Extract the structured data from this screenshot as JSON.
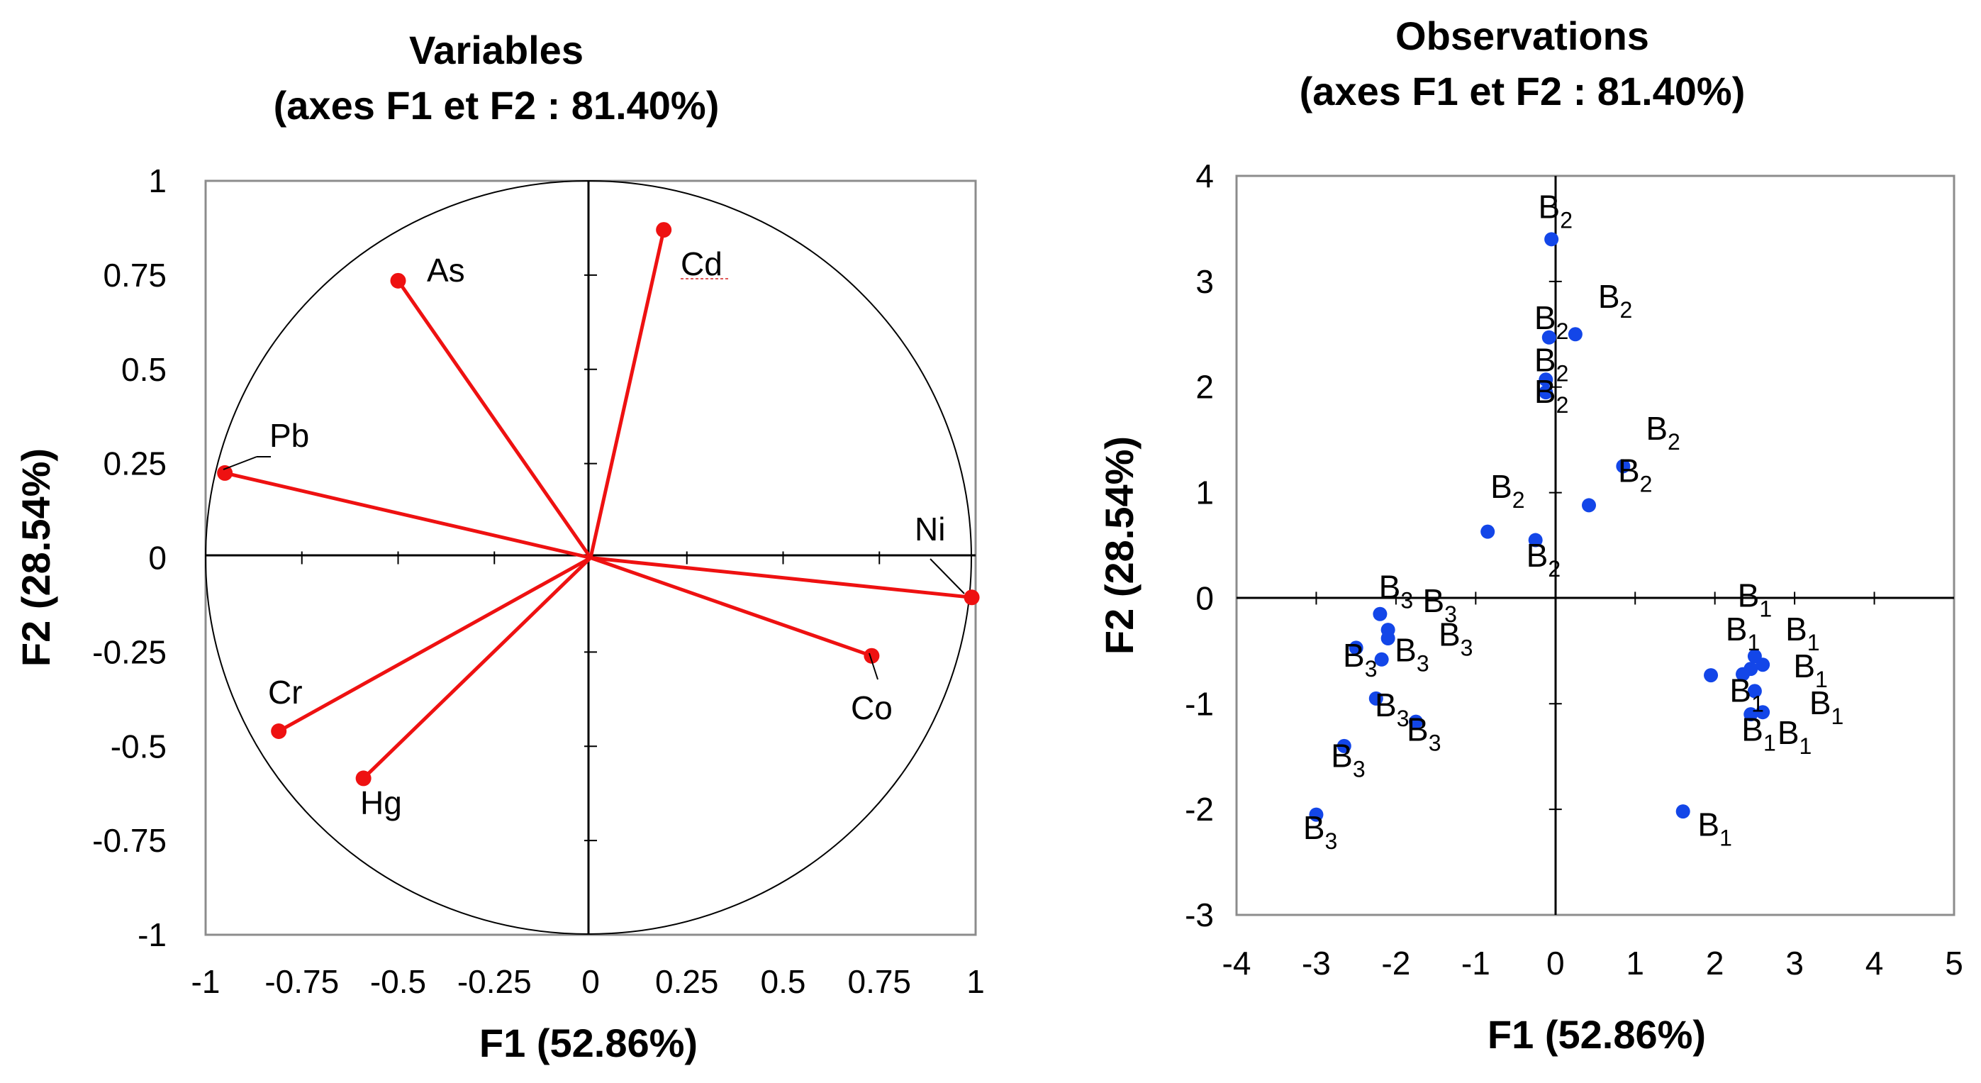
{
  "chart_data": [
    {
      "type": "scatter",
      "subtype": "correlation-circle",
      "title": [
        "Variables",
        "(axes F1 et F2 : 81.40%)"
      ],
      "xlabel": "F1 (52.86%)",
      "ylabel": "F2 (28.54%)",
      "xlim": [
        -1,
        1
      ],
      "ylim": [
        -1,
        1
      ],
      "xticks": [
        "-1",
        "-0.75",
        "-0.5",
        "-0.25",
        "0",
        "0.25",
        "0.5",
        "0.75",
        "1"
      ],
      "yticks": [
        "1",
        "0.75",
        "0.5",
        "0.25",
        "0",
        "-0.25",
        "-0.5",
        "-0.75",
        "-1"
      ],
      "colors": {
        "vector": "#ee1111",
        "circle": "#000000"
      },
      "variables": [
        {
          "name": "As",
          "x": -0.5,
          "y": 0.735
        },
        {
          "name": "Cd",
          "x": 0.19,
          "y": 0.87
        },
        {
          "name": "Pb",
          "x": -0.95,
          "y": 0.225
        },
        {
          "name": "Ni",
          "x": 0.99,
          "y": -0.105
        },
        {
          "name": "Co",
          "x": 0.73,
          "y": -0.26
        },
        {
          "name": "Cr",
          "x": -0.81,
          "y": -0.46
        },
        {
          "name": "Hg",
          "x": -0.59,
          "y": -0.585
        }
      ]
    },
    {
      "type": "scatter",
      "title": [
        "Observations",
        "(axes F1 et F2 : 81.40%)"
      ],
      "xlabel": "F1 (52.86%)",
      "ylabel": "F2 (28.54%)",
      "xlim": [
        -4,
        5
      ],
      "ylim": [
        -3,
        4
      ],
      "xticks": [
        "-4",
        "-3",
        "-2",
        "-1",
        "0",
        "1",
        "2",
        "3",
        "4",
        "5"
      ],
      "yticks": [
        "4",
        "3",
        "2",
        "1",
        "0",
        "-1",
        "-2",
        "-3"
      ],
      "colors": {
        "point": "#1346e8"
      },
      "groups": [
        "B",
        "1",
        "2",
        "3"
      ],
      "points": [
        {
          "x": -0.05,
          "y": 3.4,
          "group": "2"
        },
        {
          "x": 0.25,
          "y": 2.5,
          "group": "2"
        },
        {
          "x": -0.08,
          "y": 2.47,
          "group": "2"
        },
        {
          "x": -0.12,
          "y": 2.07,
          "group": "2"
        },
        {
          "x": -0.12,
          "y": 1.95,
          "group": "2"
        },
        {
          "x": 0.85,
          "y": 1.25,
          "group": "2"
        },
        {
          "x": 0.42,
          "y": 0.88,
          "group": "2"
        },
        {
          "x": -0.85,
          "y": 0.63,
          "group": "2"
        },
        {
          "x": -0.25,
          "y": 0.55,
          "group": "2"
        },
        {
          "x": -2.2,
          "y": -0.15,
          "group": "3"
        },
        {
          "x": -2.1,
          "y": -0.3,
          "group": "3"
        },
        {
          "x": -2.1,
          "y": -0.38,
          "group": "3"
        },
        {
          "x": -2.5,
          "y": -0.47,
          "group": "3"
        },
        {
          "x": -2.18,
          "y": -0.58,
          "group": "3"
        },
        {
          "x": -2.25,
          "y": -0.95,
          "group": "3"
        },
        {
          "x": -1.75,
          "y": -1.17,
          "group": "3"
        },
        {
          "x": -2.65,
          "y": -1.4,
          "group": "3"
        },
        {
          "x": -3.0,
          "y": -2.05,
          "group": "3"
        },
        {
          "x": 2.5,
          "y": -0.55,
          "group": "1"
        },
        {
          "x": 2.6,
          "y": -0.63,
          "group": "1"
        },
        {
          "x": 2.45,
          "y": -0.67,
          "group": "1"
        },
        {
          "x": 2.35,
          "y": -0.72,
          "group": "1"
        },
        {
          "x": 1.95,
          "y": -0.73,
          "group": "1"
        },
        {
          "x": 2.5,
          "y": -0.88,
          "group": "1"
        },
        {
          "x": 2.6,
          "y": -1.08,
          "group": "1"
        },
        {
          "x": 2.45,
          "y": -1.1,
          "group": "1"
        },
        {
          "x": 1.6,
          "y": -2.02,
          "group": "1"
        }
      ],
      "labels": [
        {
          "x": 0.0,
          "y": 3.6,
          "group": "2"
        },
        {
          "x": 0.75,
          "y": 2.75,
          "group": "2"
        },
        {
          "x": -0.05,
          "y": 2.55,
          "group": "2"
        },
        {
          "x": -0.05,
          "y": 2.15,
          "group": "2"
        },
        {
          "x": -0.05,
          "y": 1.85,
          "group": "2"
        },
        {
          "x": 1.35,
          "y": 1.5,
          "group": "2"
        },
        {
          "x": 1.0,
          "y": 1.1,
          "group": "2"
        },
        {
          "x": -0.6,
          "y": 0.95,
          "group": "2"
        },
        {
          "x": -0.15,
          "y": 0.3,
          "group": "2"
        },
        {
          "x": -2.0,
          "y": 0.0,
          "group": "3"
        },
        {
          "x": -1.45,
          "y": -0.13,
          "group": "3"
        },
        {
          "x": -1.25,
          "y": -0.45,
          "group": "3"
        },
        {
          "x": -1.8,
          "y": -0.6,
          "group": "3"
        },
        {
          "x": -2.45,
          "y": -0.65,
          "group": "3"
        },
        {
          "x": -2.05,
          "y": -1.12,
          "group": "3"
        },
        {
          "x": -1.65,
          "y": -1.35,
          "group": "3"
        },
        {
          "x": -2.6,
          "y": -1.6,
          "group": "3"
        },
        {
          "x": -2.95,
          "y": -2.28,
          "group": "3"
        },
        {
          "x": 2.5,
          "y": -0.08,
          "group": "1"
        },
        {
          "x": 2.35,
          "y": -0.4,
          "group": "1"
        },
        {
          "x": 3.1,
          "y": -0.4,
          "group": "1"
        },
        {
          "x": 3.2,
          "y": -0.75,
          "group": "1"
        },
        {
          "x": 2.4,
          "y": -0.98,
          "group": "1"
        },
        {
          "x": 3.4,
          "y": -1.1,
          "group": "1"
        },
        {
          "x": 2.55,
          "y": -1.35,
          "group": "1"
        },
        {
          "x": 3.0,
          "y": -1.38,
          "group": "1"
        },
        {
          "x": 2.0,
          "y": -2.25,
          "group": "1"
        }
      ]
    }
  ]
}
